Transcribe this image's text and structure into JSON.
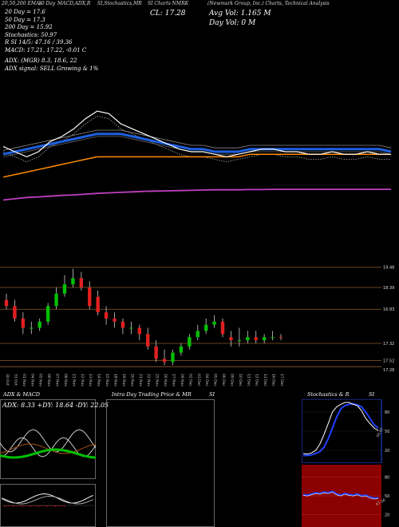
{
  "header": {
    "items": [
      "20,50,200 EMAs",
      "10 Day",
      "MACD,ADX,R",
      "SI,Stochastics,MR",
      "SI Charts NMRK",
      "(Newmark Group, Inc.) Charts, Technical Analysis"
    ],
    "ticker": "NMRK",
    "close_label": "CL: 17.28",
    "avg_vol_label": "Avg Vol: 1.165 M",
    "day_vol_label": "Day Vol: 0  M"
  },
  "info_lines": [
    "20 Day = 17.6",
    "50 Day = 17.3",
    "200 Day = 15.92",
    "Stochastics: 50.97",
    "R           SI 14/5: 47.16 / 39.36",
    "MACD: 17.21, 17.22, -0.01 C"
  ],
  "adx_lines": [
    "ADX:                    (MGR) 8.3, 18.6, 22",
    "ADX  signal: SELL Growing & 1%"
  ],
  "price_labels": [
    "19.48",
    "18.39",
    "16.83",
    "17.32",
    "17.52",
    "17.28"
  ],
  "date_labels": [
    "30 Oct",
    "31 Oct",
    "01 Nov",
    "04 Nov",
    "05 Nov",
    "06 Nov",
    "07 Nov",
    "08 Nov",
    "11 Nov",
    "12 Nov",
    "13 Nov",
    "14 Nov",
    "15 Nov",
    "18 Nov",
    "19 Nov",
    "20 Nov",
    "21 Nov",
    "22 Nov",
    "25 Nov",
    "26 Nov",
    "27 Nov",
    "29 Nov",
    "02 Dec",
    "03 Dec",
    "04 Dec",
    "05 Dec",
    "06 Dec",
    "09 Dec",
    "10 Dec",
    "11 Dec",
    "12 Dec",
    "13 Dec",
    "16 Dec",
    "17 Dec"
  ],
  "panels": {
    "adx_title": "ADX  & MACD",
    "adx_values": "ADX: 8.33  +DY: 18.64  -DY: 22.05",
    "intraday_title": "Intra Day Trading Price  & MR",
    "intraday_si": "SI",
    "stoch_title": "Stochastics & R",
    "stoch_si": "SI",
    "stoch_axis": [
      "80",
      "50",
      "20"
    ],
    "stoch_value_label": "50.97",
    "rsi_axis": [
      "80",
      "50",
      "20"
    ],
    "rsi_value_label": "47.16"
  },
  "colors": {
    "up": "#00c000",
    "down": "#e02020",
    "ema20": "#1e60e0",
    "ema50": "#ff8c00",
    "ema200": "#c040c0",
    "rsi_bg": "#8b0000",
    "stoch_line": "#2040ff"
  },
  "chart_data": [
    {
      "type": "line",
      "name": "price-overlay",
      "x_index": [
        0,
        1,
        2,
        3,
        4,
        5,
        6,
        7,
        8,
        9,
        10,
        11,
        12,
        13,
        14,
        15,
        16,
        17,
        18,
        19,
        20,
        21,
        22,
        23,
        24,
        25,
        26,
        27,
        28,
        29,
        30,
        31,
        32,
        33
      ],
      "series": [
        {
          "values": [
            17.6,
            17.4,
            17.2,
            17.4,
            17.8,
            18.0,
            18.3,
            18.7,
            19.0,
            18.9,
            18.5,
            18.3,
            18.1,
            17.9,
            17.7,
            17.5,
            17.4,
            17.4,
            17.3,
            17.2,
            17.3,
            17.4,
            17.5,
            17.5,
            17.4,
            17.4,
            17.3,
            17.3,
            17.4,
            17.3,
            17.3,
            17.4,
            17.3,
            17.3
          ]
        },
        {
          "values": [
            17.3,
            17.4,
            17.5,
            17.6,
            17.7,
            17.8,
            17.9,
            18.0,
            18.1,
            18.1,
            18.1,
            18.0,
            17.9,
            17.8,
            17.7,
            17.6,
            17.5,
            17.5,
            17.4,
            17.4,
            17.4,
            17.5,
            17.5,
            17.5,
            17.5,
            17.5,
            17.5,
            17.5,
            17.5,
            17.5,
            17.5,
            17.5,
            17.5,
            17.4
          ]
        },
        {
          "values": [
            16.4,
            16.5,
            16.6,
            16.7,
            16.8,
            16.9,
            17.0,
            17.1,
            17.2,
            17.2,
            17.2,
            17.2,
            17.2,
            17.2,
            17.2,
            17.2,
            17.2,
            17.2,
            17.2,
            17.2,
            17.2,
            17.3,
            17.3,
            17.3,
            17.3,
            17.3,
            17.3,
            17.3,
            17.3,
            17.3,
            17.3,
            17.3,
            17.3,
            17.3
          ]
        },
        {
          "values": [
            15.5,
            15.55,
            15.6,
            15.62,
            15.65,
            15.68,
            15.7,
            15.73,
            15.76,
            15.78,
            15.8,
            15.82,
            15.84,
            15.85,
            15.86,
            15.87,
            15.88,
            15.89,
            15.9,
            15.9,
            15.9,
            15.91,
            15.91,
            15.92,
            15.92,
            15.92,
            15.92,
            15.92,
            15.92,
            15.92,
            15.92,
            15.92,
            15.92,
            15.92
          ]
        }
      ]
    },
    {
      "type": "bar",
      "name": "candles",
      "categories": [
        "30 Oct",
        "31 Oct",
        "01 Nov",
        "04 Nov",
        "05 Nov",
        "06 Nov",
        "07 Nov",
        "08 Nov",
        "11 Nov",
        "12 Nov",
        "13 Nov",
        "14 Nov",
        "15 Nov",
        "18 Nov",
        "19 Nov",
        "20 Nov",
        "21 Nov",
        "22 Nov",
        "25 Nov",
        "26 Nov",
        "27 Nov",
        "29 Nov",
        "02 Dec",
        "03 Dec",
        "04 Dec",
        "05 Dec",
        "06 Dec",
        "09 Dec",
        "10 Dec",
        "11 Dec",
        "12 Dec",
        "13 Dec",
        "16 Dec",
        "17 Dec"
      ],
      "open": [
        18.5,
        18.3,
        17.9,
        17.6,
        17.6,
        17.8,
        18.3,
        18.7,
        19.0,
        19.2,
        18.9,
        18.6,
        18.1,
        17.9,
        17.8,
        17.6,
        17.6,
        17.4,
        17.0,
        16.6,
        16.5,
        16.8,
        17.0,
        17.3,
        17.5,
        17.7,
        17.8,
        17.3,
        17.2,
        17.2,
        17.3,
        17.2,
        17.3,
        17.3
      ],
      "close": [
        18.3,
        17.9,
        17.6,
        17.6,
        17.8,
        18.3,
        18.7,
        19.0,
        19.2,
        18.9,
        18.3,
        18.1,
        17.9,
        17.8,
        17.6,
        17.6,
        17.4,
        17.0,
        16.6,
        16.5,
        16.8,
        17.0,
        17.3,
        17.5,
        17.7,
        17.8,
        17.4,
        17.2,
        17.2,
        17.3,
        17.2,
        17.3,
        17.3,
        17.28
      ],
      "high": [
        18.7,
        18.5,
        18.1,
        17.8,
        17.9,
        18.4,
        18.9,
        19.3,
        19.5,
        19.4,
        19.1,
        18.8,
        18.3,
        18.1,
        17.9,
        17.8,
        17.7,
        17.6,
        17.2,
        16.9,
        16.9,
        17.1,
        17.4,
        17.7,
        17.9,
        18.0,
        17.9,
        17.5,
        17.6,
        17.5,
        17.5,
        17.4,
        17.5,
        17.4
      ],
      "low": [
        18.2,
        17.8,
        17.4,
        17.4,
        17.5,
        17.7,
        18.2,
        18.6,
        18.9,
        18.8,
        18.2,
        18.0,
        17.7,
        17.6,
        17.4,
        17.4,
        17.2,
        16.9,
        16.5,
        16.4,
        16.4,
        16.7,
        16.9,
        17.2,
        17.4,
        17.6,
        17.3,
        17.0,
        17.0,
        17.1,
        17.1,
        17.1,
        17.2,
        17.2
      ],
      "ylim": [
        16.2,
        19.8
      ]
    },
    {
      "type": "line",
      "name": "stochastics",
      "ylim": [
        0,
        100
      ],
      "series": [
        {
          "values": [
            15,
            14,
            16,
            20,
            30,
            45,
            62,
            80,
            88,
            92,
            95,
            95,
            92,
            90,
            82,
            70,
            62,
            55,
            51
          ]
        },
        {
          "values": [
            12,
            12,
            13,
            15,
            18,
            25,
            38,
            55,
            72,
            85,
            90,
            92,
            93,
            91,
            88,
            80,
            70,
            60,
            55
          ]
        }
      ]
    },
    {
      "type": "line",
      "name": "rsi",
      "ylim": [
        0,
        100
      ],
      "series": [
        {
          "values": [
            52,
            51,
            53,
            55,
            54,
            56,
            55,
            57,
            53,
            51,
            54,
            52,
            51,
            53,
            50,
            51,
            48,
            46,
            47
          ]
        }
      ]
    }
  ]
}
